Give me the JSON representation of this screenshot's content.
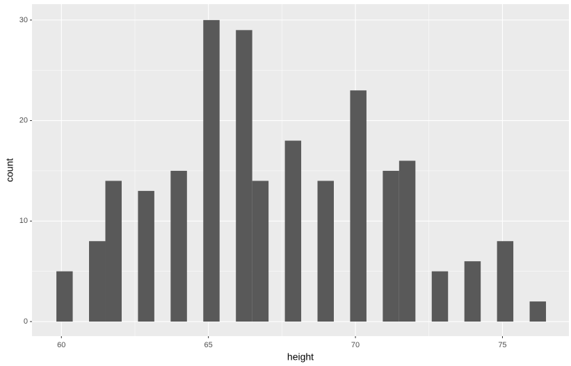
{
  "chart_data": {
    "type": "histogram",
    "x_label": "height",
    "y_label": "count",
    "bins": [
      59.83,
      60.385,
      60.94,
      61.495,
      62.05,
      62.605,
      63.16,
      63.715,
      64.27,
      64.825,
      65.38,
      65.935,
      66.49,
      67.045,
      67.6,
      68.155,
      68.71,
      69.265,
      69.82,
      70.375,
      70.93,
      71.485,
      72.04,
      72.595,
      73.15,
      73.705,
      74.26,
      74.815,
      75.37,
      75.925,
      76.48
    ],
    "counts": [
      5,
      0,
      8,
      14,
      0,
      13,
      0,
      15,
      0,
      30,
      0,
      29,
      14,
      0,
      18,
      0,
      14,
      0,
      23,
      0,
      15,
      16,
      0,
      5,
      0,
      6,
      0,
      8,
      0,
      2
    ],
    "color": "#595959",
    "xlim": [
      59.0,
      77.26
    ],
    "xticks": [
      60,
      65,
      70,
      75
    ],
    "ylim": [
      -1.45,
      31.58
    ],
    "yticks": [
      0,
      10,
      20,
      30
    ],
    "grid": true
  }
}
